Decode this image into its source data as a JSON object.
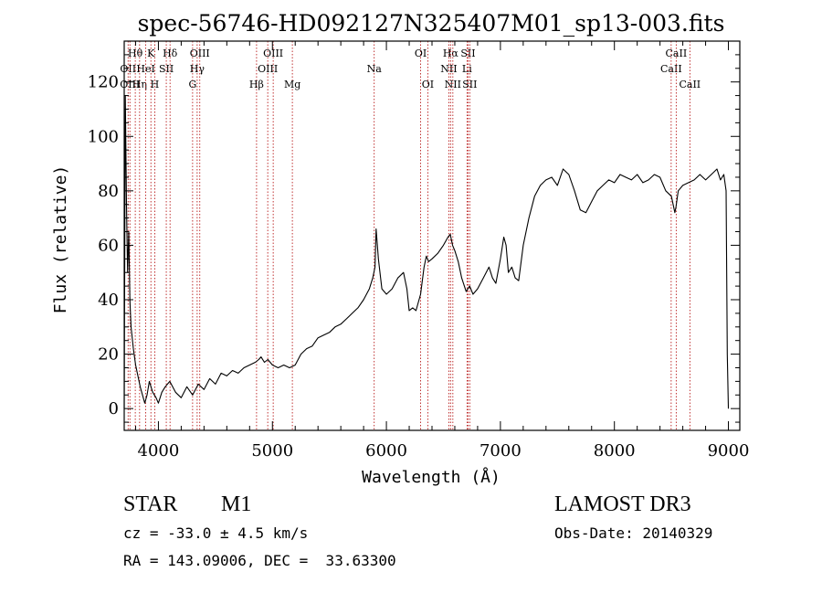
{
  "chart_data": {
    "type": "line",
    "title": "spec-56746-HD092127N325407M01_sp13-003.fits",
    "xlabel": "Wavelength (Å)",
    "ylabel": "Flux (relative)",
    "xlim": [
      3700,
      9100
    ],
    "ylim": [
      -8,
      135
    ],
    "xticks": [
      4000,
      5000,
      6000,
      7000,
      8000,
      9000
    ],
    "yticks": [
      0,
      20,
      40,
      60,
      80,
      100,
      120
    ],
    "grid": false,
    "series": [
      {
        "x": [
          3700,
          3710,
          3720,
          3730,
          3740,
          3750,
          3760,
          3780,
          3800,
          3820,
          3840,
          3860,
          3880,
          3900,
          3920,
          3950,
          3980,
          4000,
          4030,
          4060,
          4100,
          4150,
          4200,
          4250,
          4300,
          4350,
          4400,
          4450,
          4500,
          4550,
          4600,
          4650,
          4700,
          4750,
          4800,
          4850,
          4880,
          4900,
          4930,
          4960,
          5000,
          5050,
          5100,
          5150,
          5200,
          5250,
          5300,
          5350,
          5400,
          5450,
          5500,
          5550,
          5600,
          5650,
          5700,
          5750,
          5800,
          5850,
          5880,
          5900,
          5910,
          5930,
          5960,
          6000,
          6050,
          6100,
          6150,
          6180,
          6200,
          6230,
          6260,
          6300,
          6330,
          6350,
          6370,
          6400,
          6450,
          6500,
          6540,
          6560,
          6580,
          6600,
          6630,
          6660,
          6700,
          6730,
          6760,
          6800,
          6850,
          6900,
          6930,
          6960,
          7000,
          7030,
          7050,
          7070,
          7100,
          7130,
          7160,
          7200,
          7250,
          7300,
          7350,
          7400,
          7450,
          7500,
          7550,
          7600,
          7650,
          7700,
          7750,
          7800,
          7850,
          7900,
          7950,
          8000,
          8050,
          8100,
          8150,
          8200,
          8250,
          8300,
          8350,
          8400,
          8450,
          8500,
          8530,
          8540,
          8560,
          8600,
          8650,
          8700,
          8750,
          8800,
          8850,
          8900,
          8930,
          8960,
          8980,
          8990,
          9000
        ],
        "y": [
          0,
          115,
          75,
          50,
          65,
          40,
          30,
          22,
          16,
          12,
          8,
          5,
          2,
          5,
          10,
          6,
          4,
          2,
          6,
          8,
          10,
          6,
          4,
          8,
          5,
          9,
          7,
          11,
          9,
          13,
          12,
          14,
          13,
          15,
          16,
          17,
          18,
          19,
          17,
          18,
          16,
          15,
          16,
          15,
          16,
          20,
          22,
          23,
          26,
          27,
          28,
          30,
          31,
          33,
          35,
          37,
          40,
          44,
          48,
          52,
          66,
          55,
          44,
          42,
          44,
          48,
          50,
          44,
          36,
          37,
          36,
          42,
          52,
          56,
          54,
          55,
          57,
          60,
          63,
          64,
          60,
          58,
          54,
          48,
          43,
          45,
          42,
          44,
          48,
          52,
          48,
          46,
          55,
          63,
          60,
          50,
          52,
          48,
          47,
          60,
          70,
          78,
          82,
          84,
          85,
          82,
          88,
          86,
          80,
          73,
          72,
          76,
          80,
          82,
          84,
          83,
          86,
          85,
          84,
          86,
          83,
          84,
          86,
          85,
          80,
          78,
          72,
          74,
          80,
          82,
          83,
          84,
          86,
          84,
          86,
          88,
          84,
          86,
          80,
          20,
          0
        ]
      }
    ],
    "line_markers": [
      {
        "x": 3734,
        "label": "OII",
        "row": 1
      },
      {
        "x": 3750,
        "label": "OIII",
        "row": 2
      },
      {
        "x": 3797,
        "label": "Hθ",
        "row": 0
      },
      {
        "x": 3835,
        "label": "Hη",
        "row": 2
      },
      {
        "x": 3889,
        "label": "HeI",
        "row": 1
      },
      {
        "x": 3934,
        "label": "K",
        "row": 0
      },
      {
        "x": 3968,
        "label": "H",
        "row": 2
      },
      {
        "x": 4069,
        "label": "SII",
        "row": 1
      },
      {
        "x": 4102,
        "label": "Hδ",
        "row": 0
      },
      {
        "x": 4300,
        "label": "G",
        "row": 2
      },
      {
        "x": 4340,
        "label": "Hγ",
        "row": 1
      },
      {
        "x": 4363,
        "label": "OIII",
        "row": 0
      },
      {
        "x": 4861,
        "label": "Hβ",
        "row": 2
      },
      {
        "x": 4959,
        "label": "OIII",
        "row": 1
      },
      {
        "x": 5007,
        "label": "OIII",
        "row": 0
      },
      {
        "x": 5175,
        "label": "Mg",
        "row": 2
      },
      {
        "x": 5893,
        "label": "Na",
        "row": 1
      },
      {
        "x": 6300,
        "label": "OI",
        "row": 0
      },
      {
        "x": 6363,
        "label": "OI",
        "row": 2
      },
      {
        "x": 6548,
        "label": "NII",
        "row": 1
      },
      {
        "x": 6563,
        "label": "Hα",
        "row": 0
      },
      {
        "x": 6583,
        "label": "NII",
        "row": 2
      },
      {
        "x": 6707,
        "label": "Li",
        "row": 1
      },
      {
        "x": 6716,
        "label": "SII",
        "row": 0
      },
      {
        "x": 6731,
        "label": "SII",
        "row": 2
      },
      {
        "x": 8498,
        "label": "CaII",
        "row": 1
      },
      {
        "x": 8542,
        "label": "CaII",
        "row": 0
      },
      {
        "x": 8662,
        "label": "CaII",
        "row": 2
      }
    ]
  },
  "info": {
    "object_class": "STAR",
    "subclass": "M1",
    "survey": "LAMOST DR3",
    "redshift": "cz = -33.0 ± 4.5 km/s",
    "obs_date": "Obs-Date: 20140329",
    "coords": "RA = 143.09006, DEC =  33.63300"
  },
  "colors": {
    "spectrum": "#000000",
    "marker_line": "#b00000",
    "axes": "#000000"
  }
}
